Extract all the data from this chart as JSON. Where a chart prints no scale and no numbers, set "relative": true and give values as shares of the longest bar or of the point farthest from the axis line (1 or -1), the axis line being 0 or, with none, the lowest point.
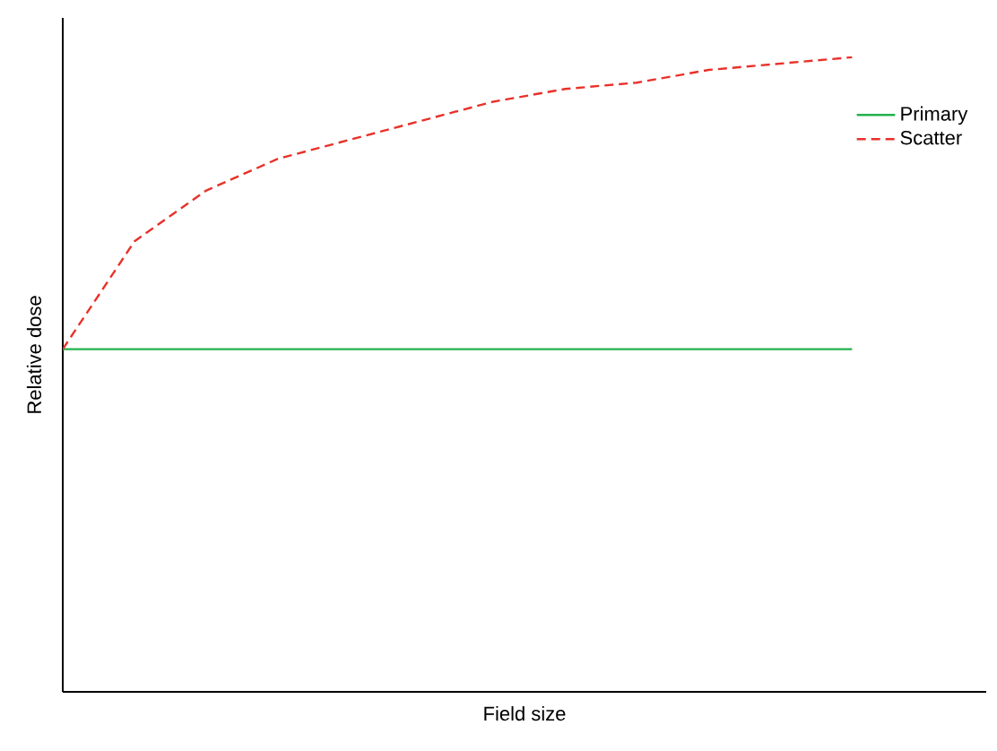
{
  "chart_data": {
    "type": "line",
    "relative": true,
    "xlabel": "Field size",
    "ylabel": "Relative dose",
    "categories": [
      null,
      null,
      null,
      null,
      null,
      null,
      null,
      null,
      null,
      null,
      null,
      null
    ],
    "series": [
      {
        "name": "Primary",
        "color": "#22b14c",
        "line_style": "solid",
        "values": [
          0.54,
          0.54,
          0.54,
          0.54,
          0.54,
          0.54,
          0.54,
          0.54,
          0.54,
          0.54,
          0.54,
          0.54
        ]
      },
      {
        "name": "Scatter",
        "color": "#e8312a",
        "line_style": "dashed",
        "values": [
          0.54,
          0.71,
          0.79,
          0.84,
          0.87,
          0.9,
          0.93,
          0.95,
          0.96,
          0.98,
          0.99,
          1.0
        ]
      }
    ],
    "legend": "top right"
  }
}
